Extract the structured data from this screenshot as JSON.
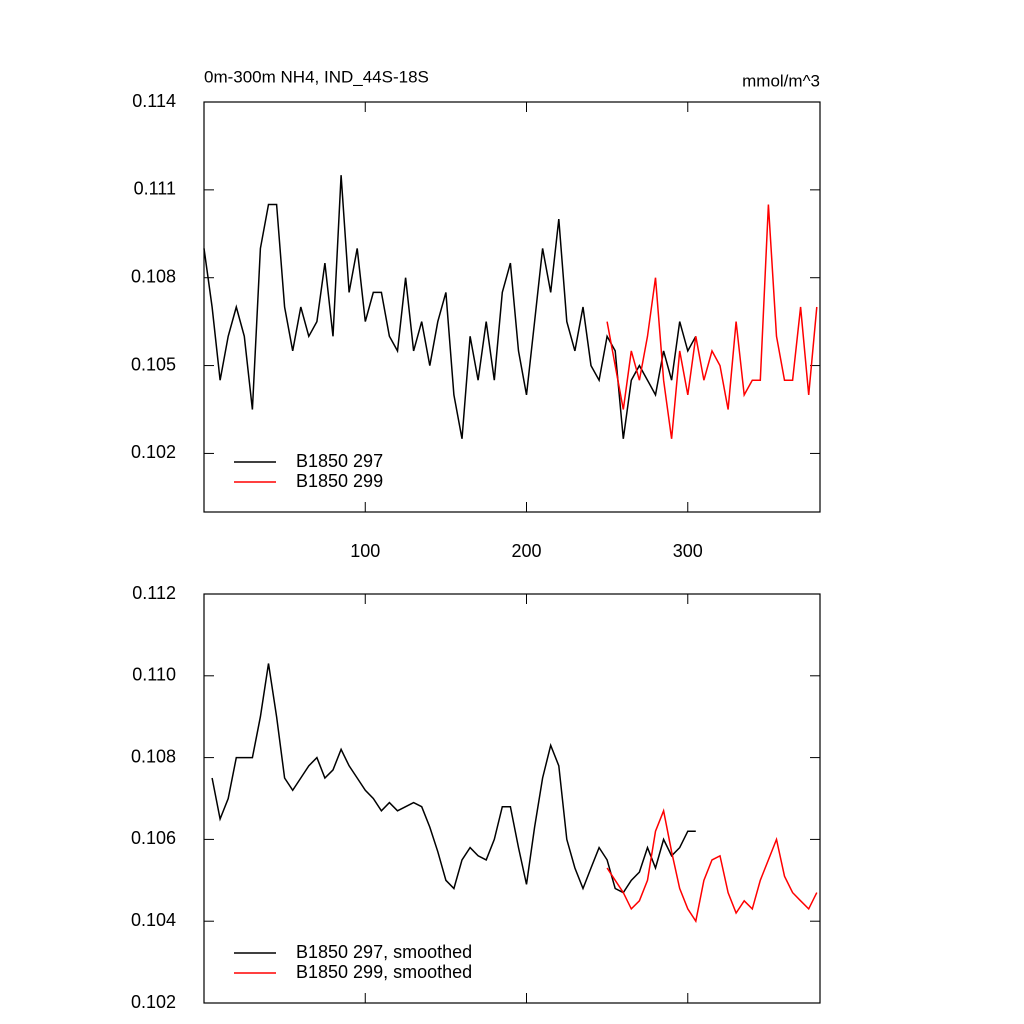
{
  "chart_data": [
    {
      "type": "line",
      "title": "0m-300m NH4, IND_44S-18S",
      "subtitle": "mmol/m^3",
      "x": [
        0,
        5,
        10,
        15,
        20,
        25,
        30,
        35,
        40,
        45,
        50,
        55,
        60,
        65,
        70,
        75,
        80,
        85,
        90,
        95,
        100,
        105,
        110,
        115,
        120,
        125,
        130,
        135,
        140,
        145,
        150,
        155,
        160,
        165,
        170,
        175,
        180,
        185,
        190,
        195,
        200,
        205,
        210,
        215,
        220,
        225,
        230,
        235,
        240,
        245,
        250,
        255,
        260,
        265,
        270,
        275,
        280,
        285,
        290,
        295,
        300,
        305,
        310,
        315,
        320,
        325,
        330,
        335,
        340,
        345,
        350,
        355,
        360,
        365,
        370,
        375,
        380
      ],
      "xlim": [
        0,
        382
      ],
      "xticks": [
        100,
        200,
        300
      ],
      "ylim": [
        0.1,
        0.114
      ],
      "yticks": [
        0.102,
        0.105,
        0.108,
        0.111,
        0.114
      ],
      "legend": "lower left",
      "series": [
        {
          "name": "B1850 297",
          "color": "#000000",
          "values": [
            0.109,
            0.107,
            0.1045,
            0.106,
            0.107,
            0.106,
            0.1035,
            0.109,
            0.1105,
            0.1105,
            0.107,
            0.1055,
            0.107,
            0.106,
            0.1065,
            0.1085,
            0.106,
            0.1115,
            0.1075,
            0.109,
            0.1065,
            0.1075,
            0.1075,
            0.106,
            0.1055,
            0.108,
            0.1055,
            0.1065,
            0.105,
            0.1065,
            0.1075,
            0.104,
            0.1025,
            0.106,
            0.1045,
            0.1065,
            0.1045,
            0.1075,
            0.1085,
            0.1055,
            0.104,
            0.1065,
            0.109,
            0.1075,
            0.11,
            0.1065,
            0.1055,
            0.107,
            0.105,
            0.1045,
            0.106,
            0.1055,
            0.1025,
            0.1045,
            0.105,
            0.1045,
            0.104,
            0.1055,
            0.1045,
            0.1065,
            0.1055,
            0.106,
            null,
            null,
            null,
            null,
            null,
            null,
            null,
            null,
            null,
            null,
            null,
            null,
            null,
            null,
            null
          ]
        },
        {
          "name": "B1850 299",
          "color": "#ff0000",
          "values": [
            null,
            null,
            null,
            null,
            null,
            null,
            null,
            null,
            null,
            null,
            null,
            null,
            null,
            null,
            null,
            null,
            null,
            null,
            null,
            null,
            null,
            null,
            null,
            null,
            null,
            null,
            null,
            null,
            null,
            null,
            null,
            null,
            null,
            null,
            null,
            null,
            null,
            null,
            null,
            null,
            null,
            null,
            null,
            null,
            null,
            null,
            null,
            null,
            null,
            null,
            0.1065,
            0.105,
            0.1035,
            0.1055,
            0.1045,
            0.106,
            0.108,
            0.1045,
            0.1025,
            0.1055,
            0.104,
            0.106,
            0.1045,
            0.1055,
            0.105,
            0.1035,
            0.1065,
            0.104,
            0.1045,
            0.1045,
            0.1105,
            0.106,
            0.1045,
            0.1045,
            0.107,
            0.104,
            0.107
          ]
        }
      ]
    },
    {
      "type": "line",
      "x": [
        0,
        5,
        10,
        15,
        20,
        25,
        30,
        35,
        40,
        45,
        50,
        55,
        60,
        65,
        70,
        75,
        80,
        85,
        90,
        95,
        100,
        105,
        110,
        115,
        120,
        125,
        130,
        135,
        140,
        145,
        150,
        155,
        160,
        165,
        170,
        175,
        180,
        185,
        190,
        195,
        200,
        205,
        210,
        215,
        220,
        225,
        230,
        235,
        240,
        245,
        250,
        255,
        260,
        265,
        270,
        275,
        280,
        285,
        290,
        295,
        300,
        305,
        310,
        315,
        320,
        325,
        330,
        335,
        340,
        345,
        350,
        355,
        360,
        365,
        370,
        375,
        380
      ],
      "xlim": [
        0,
        382
      ],
      "xticks": [
        100,
        200,
        300
      ],
      "ylim": [
        0.102,
        0.112
      ],
      "yticks": [
        0.102,
        0.104,
        0.106,
        0.108,
        {
          "value": 0.11,
          "label": "0.110"
        },
        0.112
      ],
      "legend": "lower left",
      "series": [
        {
          "name": "B1850 297, smoothed",
          "color": "#000000",
          "values": [
            null,
            0.1075,
            0.1065,
            0.107,
            0.108,
            0.108,
            0.108,
            0.109,
            0.1103,
            0.109,
            0.1075,
            0.1072,
            0.1075,
            0.1078,
            0.108,
            0.1075,
            0.1077,
            0.1082,
            0.1078,
            0.1075,
            0.1072,
            0.107,
            0.1067,
            0.1069,
            0.1067,
            0.1068,
            0.1069,
            0.1068,
            0.1063,
            0.1057,
            0.105,
            0.1048,
            0.1055,
            0.1058,
            0.1056,
            0.1055,
            0.106,
            0.1068,
            0.1068,
            0.1058,
            0.1049,
            0.1063,
            0.1075,
            0.1083,
            0.1078,
            0.106,
            0.1053,
            0.1048,
            0.1053,
            0.1058,
            0.1055,
            0.1048,
            0.1047,
            0.105,
            0.1052,
            0.1058,
            0.1053,
            0.106,
            0.1056,
            0.1058,
            0.1062,
            0.1062,
            null,
            null,
            null,
            null,
            null,
            null,
            null,
            null,
            null,
            null,
            null,
            null,
            null,
            null,
            null
          ]
        },
        {
          "name": "B1850 299, smoothed",
          "color": "#ff0000",
          "values": [
            null,
            null,
            null,
            null,
            null,
            null,
            null,
            null,
            null,
            null,
            null,
            null,
            null,
            null,
            null,
            null,
            null,
            null,
            null,
            null,
            null,
            null,
            null,
            null,
            null,
            null,
            null,
            null,
            null,
            null,
            null,
            null,
            null,
            null,
            null,
            null,
            null,
            null,
            null,
            null,
            null,
            null,
            null,
            null,
            null,
            null,
            null,
            null,
            null,
            null,
            0.1053,
            0.105,
            0.1047,
            0.1043,
            0.1045,
            0.105,
            0.1062,
            0.1067,
            0.1057,
            0.1048,
            0.1043,
            0.104,
            0.105,
            0.1055,
            0.1056,
            0.1047,
            0.1042,
            0.1045,
            0.1043,
            0.105,
            0.1055,
            0.106,
            0.1051,
            0.1047,
            0.1045,
            0.1043,
            0.1047
          ]
        }
      ]
    }
  ]
}
